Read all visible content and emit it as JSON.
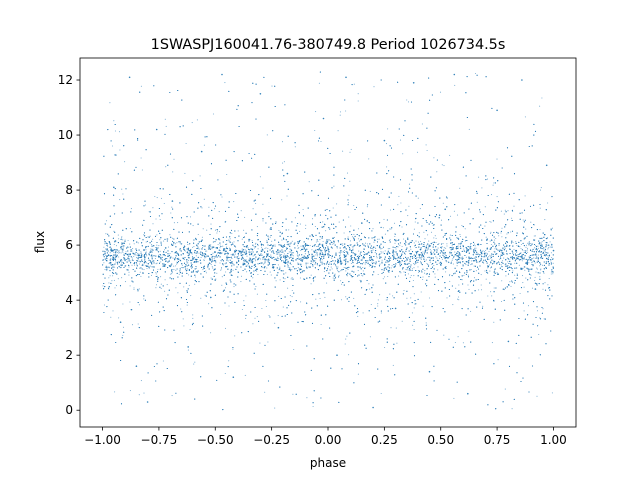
{
  "chart_data": {
    "type": "scatter",
    "title": "1SWASPJ160041.76-380749.8 Period 1026734.5s",
    "xlabel": "phase",
    "ylabel": "flux",
    "xlim": [
      -1.1,
      1.1
    ],
    "ylim": [
      -0.61,
      12.8
    ],
    "xticks": [
      -1.0,
      -0.75,
      -0.5,
      -0.25,
      0.0,
      0.25,
      0.5,
      0.75,
      1.0
    ],
    "xtick_labels": [
      "−1.00",
      "−0.75",
      "−0.50",
      "−0.25",
      "0.00",
      "0.25",
      "0.50",
      "0.75",
      "1.00"
    ],
    "yticks": [
      0,
      2,
      4,
      6,
      8,
      10,
      12
    ],
    "ytick_labels": [
      "0",
      "2",
      "4",
      "6",
      "8",
      "10",
      "12"
    ],
    "grid": false,
    "legend": "none",
    "marker_color": "#1f77b4",
    "series": [
      {
        "x_range": [
          -1.0,
          1.0
        ],
        "y_range": [
          0.0,
          12.3
        ],
        "core_band": [
          4.8,
          6.5
        ],
        "median": 5.6,
        "points": [
          {
            "x": -0.98,
            "y": 5.6
          },
          {
            "x": -0.95,
            "y": 8.1
          },
          {
            "x": -0.92,
            "y": 3.2
          },
          {
            "x": -0.88,
            "y": 12.1
          },
          {
            "x": -0.85,
            "y": 1.6
          },
          {
            "x": -0.8,
            "y": 0.3
          },
          {
            "x": -0.76,
            "y": 10.2
          },
          {
            "x": -0.72,
            "y": 5.9
          },
          {
            "x": -0.69,
            "y": 7.6
          },
          {
            "x": -0.62,
            "y": 2.3
          },
          {
            "x": -0.56,
            "y": 9.4
          },
          {
            "x": -0.52,
            "y": 4.1
          },
          {
            "x": -0.47,
            "y": 12.2
          },
          {
            "x": -0.42,
            "y": 1.2
          },
          {
            "x": -0.35,
            "y": 6.2
          },
          {
            "x": -0.3,
            "y": 11.5
          },
          {
            "x": -0.22,
            "y": 3.0
          },
          {
            "x": -0.18,
            "y": 8.6
          },
          {
            "x": -0.08,
            "y": 5.2
          },
          {
            "x": -0.02,
            "y": 10.6
          },
          {
            "x": 0.04,
            "y": 2.0
          },
          {
            "x": 0.08,
            "y": 12.1
          },
          {
            "x": 0.15,
            "y": 6.8
          },
          {
            "x": 0.2,
            "y": 0.1
          },
          {
            "x": 0.25,
            "y": 9.8
          },
          {
            "x": 0.3,
            "y": 3.7
          },
          {
            "x": 0.38,
            "y": 11.9
          },
          {
            "x": 0.45,
            "y": 1.4
          },
          {
            "x": 0.52,
            "y": 7.3
          },
          {
            "x": 0.56,
            "y": 12.2
          },
          {
            "x": 0.62,
            "y": 0.6
          },
          {
            "x": 0.68,
            "y": 5.5
          },
          {
            "x": 0.75,
            "y": 10.9
          },
          {
            "x": 0.8,
            "y": 2.5
          },
          {
            "x": 0.86,
            "y": 12.0
          },
          {
            "x": 0.92,
            "y": 4.4
          },
          {
            "x": 0.97,
            "y": 8.9
          },
          {
            "x": 1.0,
            "y": 5.8
          }
        ]
      }
    ]
  }
}
